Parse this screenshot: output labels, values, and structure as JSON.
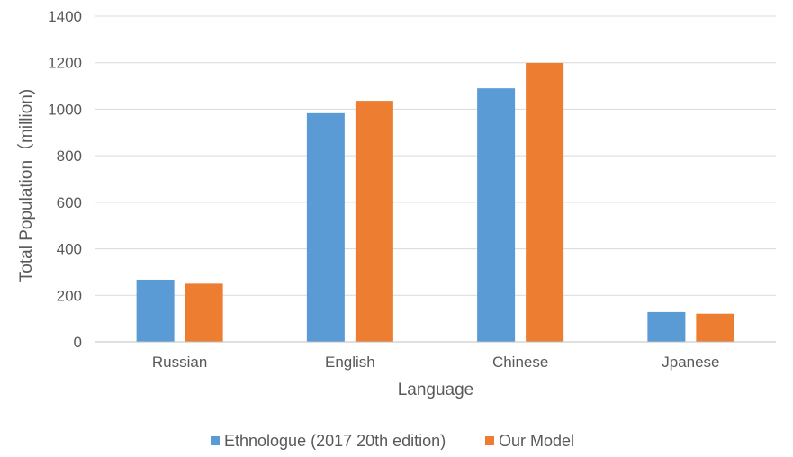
{
  "chart_data": {
    "type": "bar",
    "categories": [
      "Russian",
      "English",
      "Chinese",
      "Jpanese"
    ],
    "series": [
      {
        "name": "Ethnologue (2017 20th edition)",
        "color": "#5B9BD5",
        "values": [
          267,
          983,
          1090,
          128
        ]
      },
      {
        "name": "Our Model",
        "color": "#ED7D31",
        "values": [
          250,
          1036,
          1199,
          121
        ]
      }
    ],
    "title": "",
    "xlabel": "Language",
    "ylabel": "Total Population（million)",
    "ylim": [
      0,
      1400
    ],
    "yticks": [
      0,
      200,
      400,
      600,
      800,
      1000,
      1200,
      1400
    ],
    "grid": true,
    "legend_position": "bottom"
  }
}
